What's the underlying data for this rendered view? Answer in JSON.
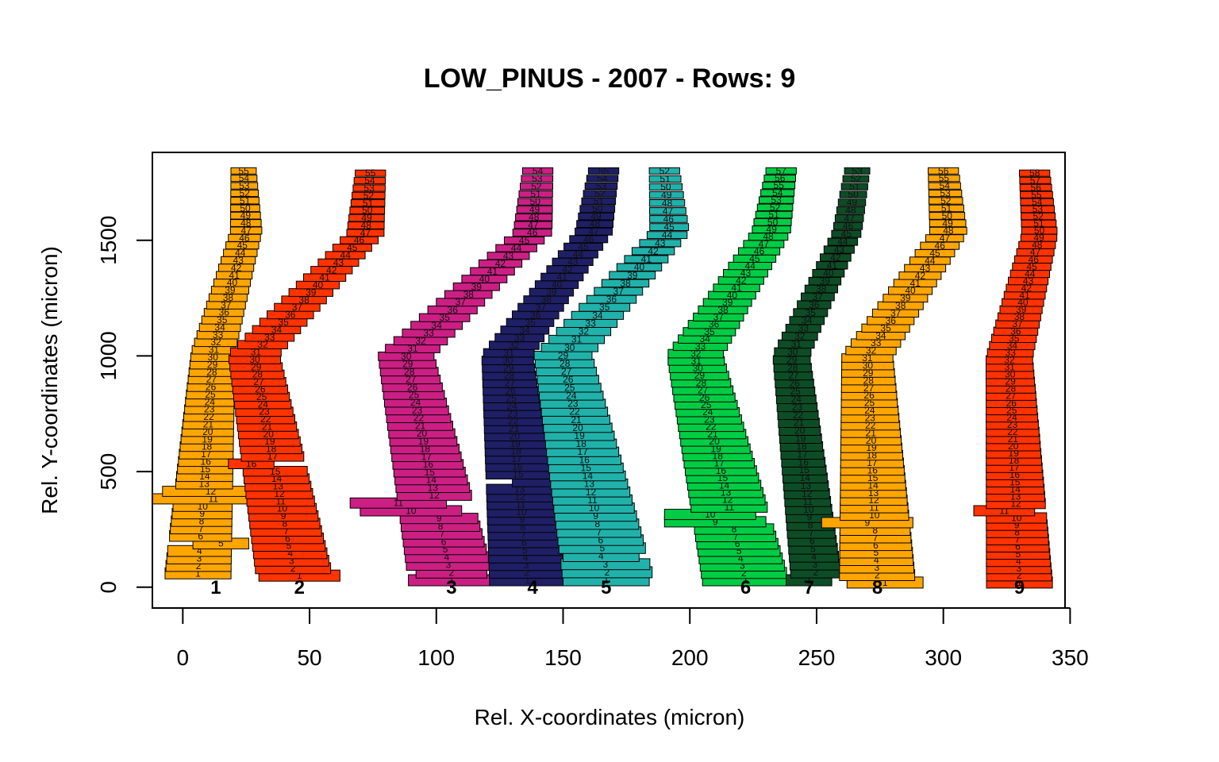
{
  "chart_data": {
    "type": "scatter",
    "title": "LOW_PINUS - 2007 - Rows: 9",
    "xlabel": "Rel. X-coordinates (micron)",
    "ylabel": "Rel. Y-coordinates (micron)",
    "xlim": [
      -12,
      348
    ],
    "ylim": [
      -90,
      1880
    ],
    "xticks": [
      0,
      50,
      100,
      150,
      200,
      250,
      300,
      350
    ],
    "yticks": [
      0,
      500,
      1000,
      1500
    ],
    "grid": false,
    "legend": "none",
    "mark": "rectangle (cell extent) with cell number label",
    "series": [
      {
        "row": "1",
        "color": "#FFA500",
        "label_x": 13,
        "label_y": 0,
        "n_cells": 55,
        "bottom_y": 60,
        "top_y": 1800,
        "x_start": [
          6,
          12
        ],
        "x_end": [
          25,
          24
        ],
        "width_start": 26,
        "width_end": 10,
        "highlight": [
          [
            11,
            -12,
            36
          ],
          [
            12,
            -8,
            30
          ],
          [
            5,
            4,
            26
          ]
        ]
      },
      {
        "row": "2",
        "color": "#FF3300",
        "label_x": 46,
        "label_y": 0,
        "n_cells": 55,
        "bottom_y": 50,
        "top_y": 1790,
        "x_start": [
          44,
          28
        ],
        "x_end": [
          72,
          74
        ],
        "width_start": 30,
        "width_end": 12,
        "highlight": [
          [
            16,
            18,
            36
          ],
          [
            1,
            30,
            62
          ]
        ]
      },
      {
        "row": "3",
        "color": "#CC1F84",
        "label_x": 106,
        "label_y": 0,
        "n_cells": 54,
        "bottom_y": 30,
        "top_y": 1800,
        "x_start": [
          106,
          88
        ],
        "x_end": [
          138,
          140
        ],
        "width_start": 34,
        "width_end": 12,
        "highlight": [
          [
            11,
            66,
            104
          ],
          [
            10,
            70,
            110
          ],
          [
            2,
            92,
            120
          ]
        ]
      },
      {
        "row": "4",
        "color": "#1F1F66",
        "label_x": 138,
        "label_y": 0,
        "n_cells": 55,
        "bottom_y": 30,
        "top_y": 1800,
        "x_start": [
          136,
          128
        ],
        "x_end": [
          162,
          166
        ],
        "width_start": 30,
        "width_end": 12,
        "highlight": [
          [
            14,
            130,
            174
          ]
        ]
      },
      {
        "row": "5",
        "color": "#20B2AA",
        "label_x": 167,
        "label_y": 0,
        "n_cells": 52,
        "bottom_y": 30,
        "top_y": 1800,
        "x_start": [
          168,
          150
        ],
        "x_end": [
          192,
          190
        ],
        "width_start": 36,
        "width_end": 12,
        "highlight": [
          [
            4,
            150,
            180
          ],
          [
            1,
            150,
            184
          ]
        ]
      },
      {
        "row": "6",
        "color": "#00CC44",
        "label_x": 222,
        "label_y": 0,
        "n_cells": 57,
        "bottom_y": 30,
        "top_y": 1800,
        "x_start": [
          222,
          202
        ],
        "x_end": [
          232,
          236
        ],
        "width_start": 34,
        "width_end": 12,
        "highlight": [
          [
            10,
            190,
            226
          ],
          [
            9,
            190,
            230
          ]
        ]
      },
      {
        "row": "7",
        "color": "#0D4D26",
        "label_x": 247,
        "label_y": 0,
        "n_cells": 53,
        "bottom_y": 30,
        "top_y": 1800,
        "x_start": [
          250,
          240
        ],
        "x_end": [
          262,
          266
        ],
        "width_start": 20,
        "width_end": 10,
        "highlight": [
          [
            1,
            238,
            256
          ]
        ]
      },
      {
        "row": "8",
        "color": "#FFA500",
        "label_x": 274,
        "label_y": 0,
        "n_cells": 56,
        "bottom_y": 20,
        "top_y": 1800,
        "x_start": [
          274,
          270
        ],
        "x_end": [
          302,
          300
        ],
        "width_start": 30,
        "width_end": 12,
        "highlight": [
          [
            9,
            252,
            288
          ],
          [
            1,
            262,
            292
          ]
        ]
      },
      {
        "row": "9",
        "color": "#FF3300",
        "label_x": 330,
        "label_y": 0,
        "n_cells": 58,
        "bottom_y": 20,
        "top_y": 1790,
        "x_start": [
          330,
          326
        ],
        "x_end": [
          338,
          336
        ],
        "width_start": 26,
        "width_end": 12,
        "highlight": [
          [
            11,
            312,
            336
          ]
        ]
      }
    ]
  }
}
